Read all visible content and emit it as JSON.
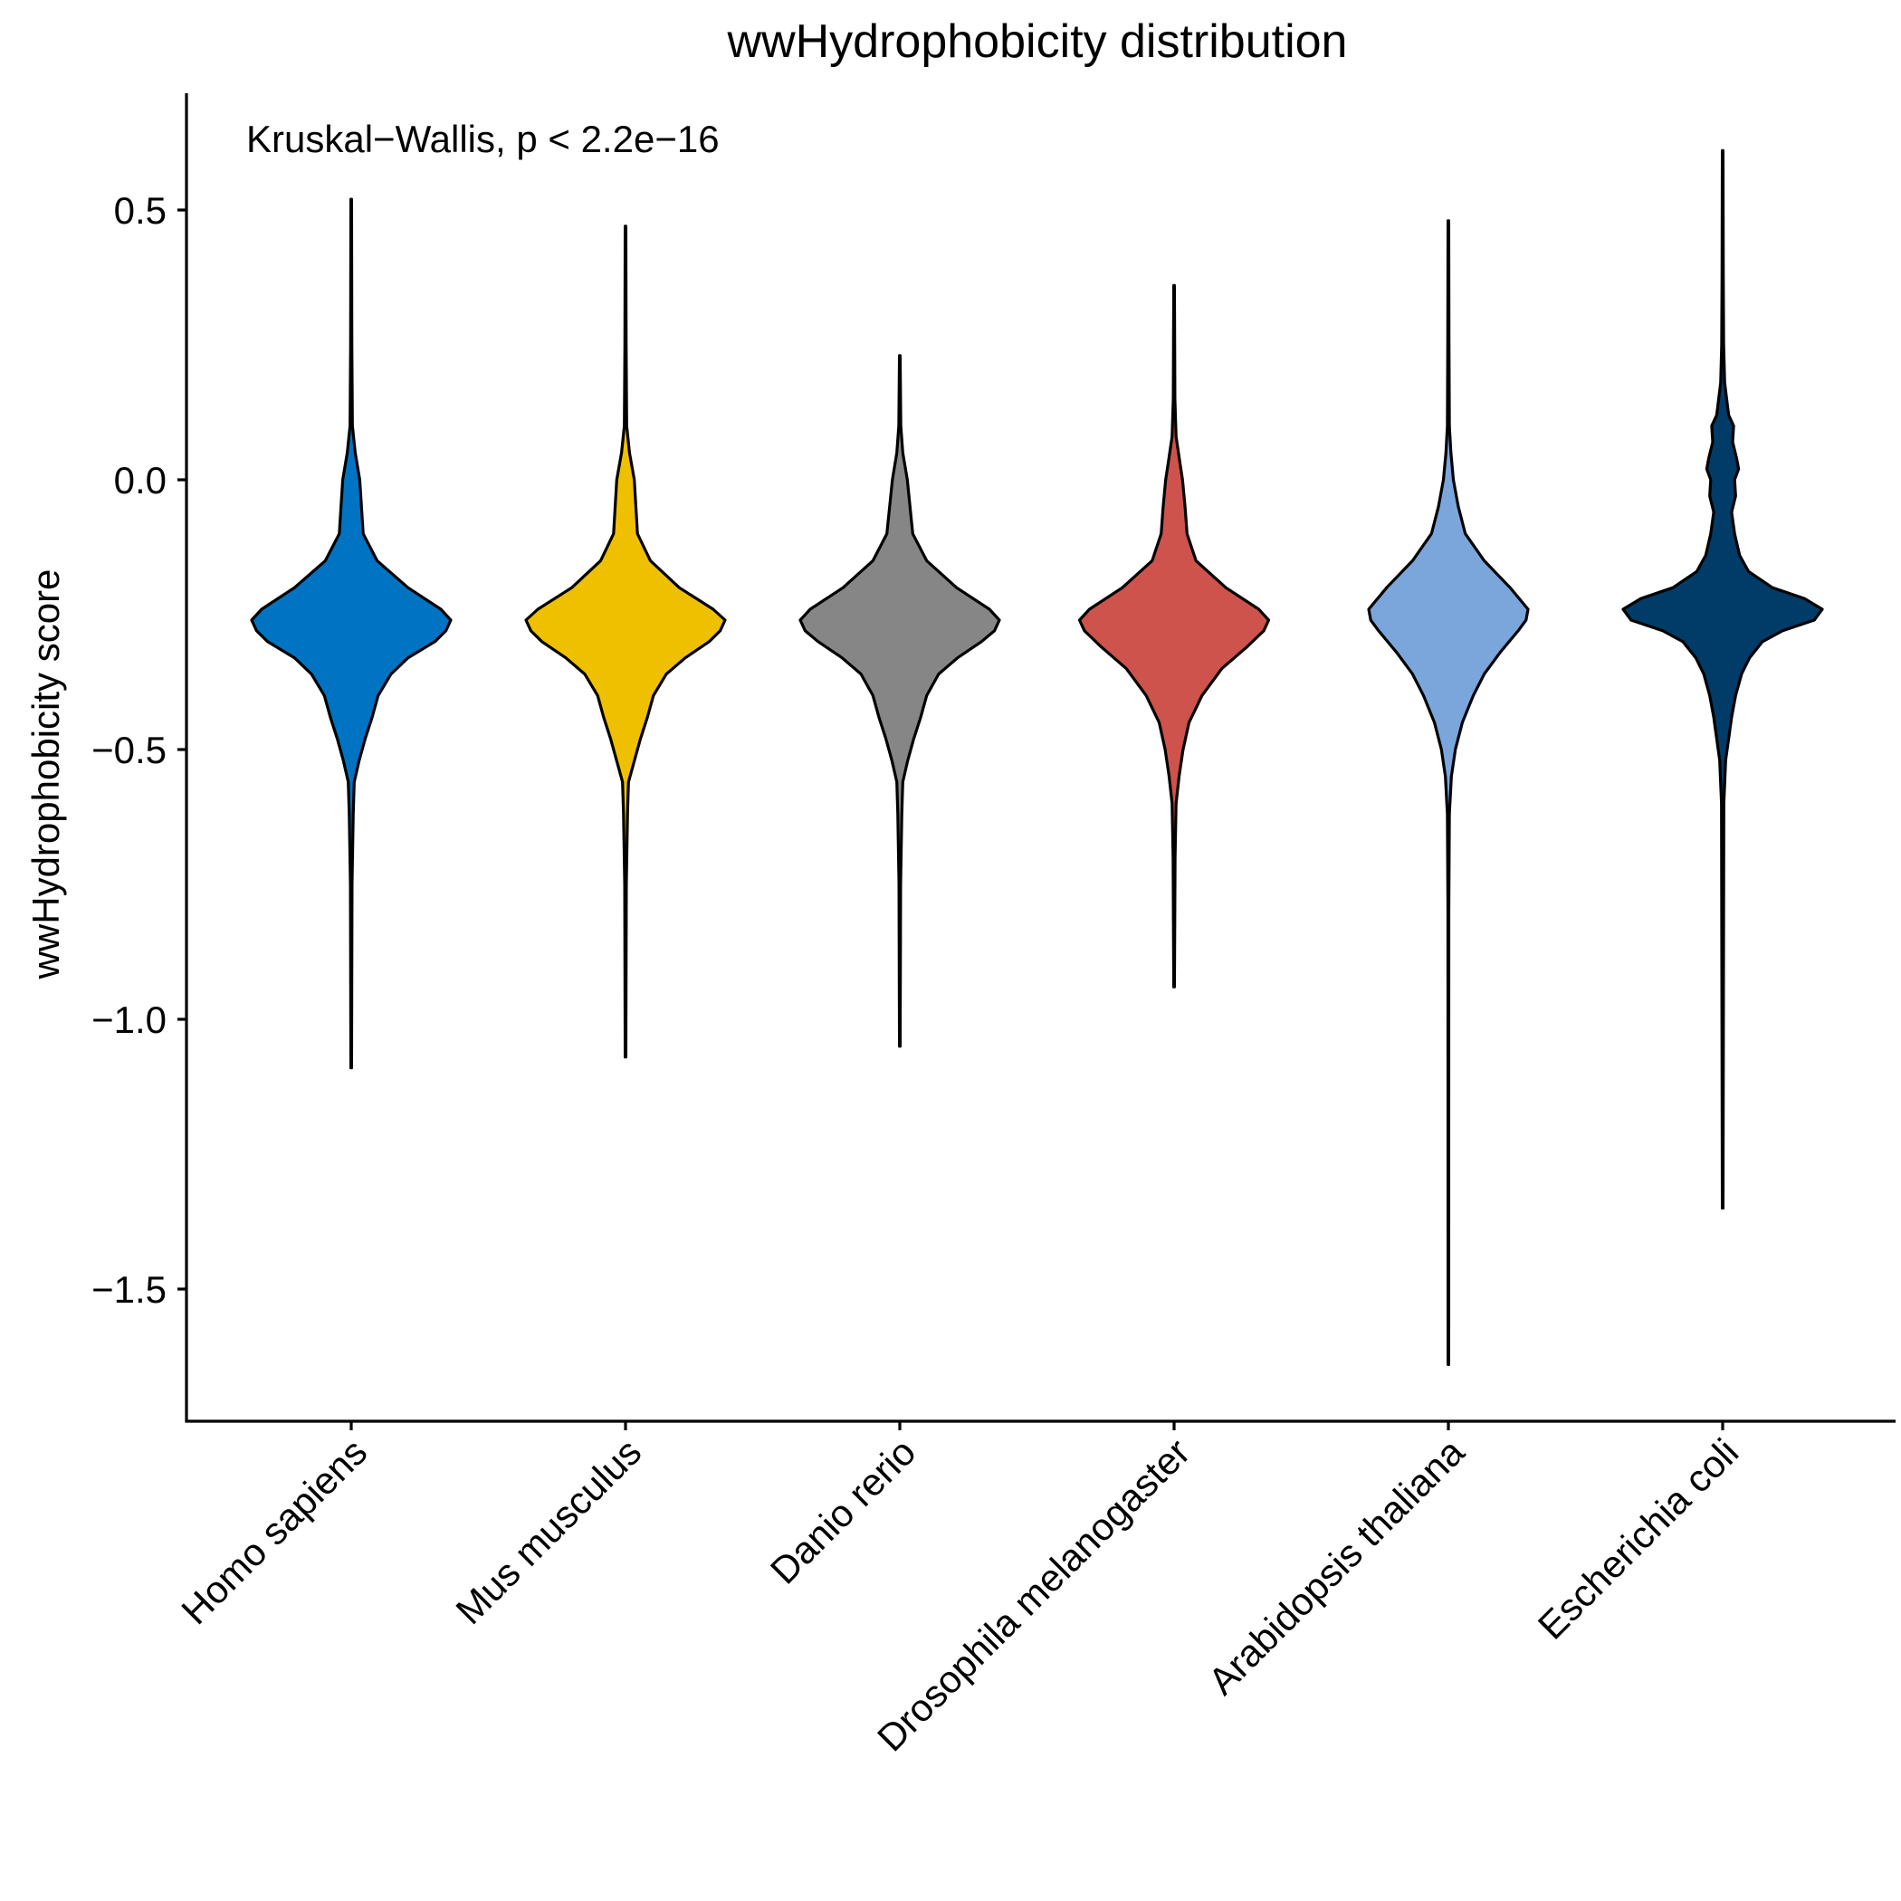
{
  "chart_data": {
    "type": "violin",
    "title": "wwHydrophobicity distribution",
    "xlabel": "",
    "ylabel": "wwHydrophobicity score",
    "annotation": "Kruskal−Wallis, p < 2.2e−16",
    "ylim": [
      -1.75,
      0.72
    ],
    "yticks": [
      0.5,
      0.0,
      -0.5,
      -1.0,
      -1.5
    ],
    "ytick_labels": [
      "0.5",
      "0.0",
      "−0.5",
      "−1.0",
      "−1.5"
    ],
    "grid": false,
    "legend": "none",
    "categories": [
      "Homo sapiens",
      "Mus musculus",
      "Danio rerio",
      "Drosophila melanogaster",
      "Arabidopsis thaliana",
      "Escherichia coli"
    ],
    "series": [
      {
        "category": "Homo sapiens",
        "color": "#0073C2",
        "min": -1.09,
        "max": 0.52,
        "profile": [
          [
            0.52,
            0.004
          ],
          [
            0.25,
            0.006
          ],
          [
            0.1,
            0.012
          ],
          [
            0.05,
            0.04
          ],
          [
            0.0,
            0.085
          ],
          [
            -0.1,
            0.12
          ],
          [
            -0.15,
            0.26
          ],
          [
            -0.2,
            0.57
          ],
          [
            -0.24,
            0.9
          ],
          [
            -0.26,
            1.0
          ],
          [
            -0.28,
            0.95
          ],
          [
            -0.3,
            0.84
          ],
          [
            -0.33,
            0.57
          ],
          [
            -0.36,
            0.4
          ],
          [
            -0.4,
            0.27
          ],
          [
            -0.44,
            0.21
          ],
          [
            -0.48,
            0.14
          ],
          [
            -0.52,
            0.08
          ],
          [
            -0.56,
            0.03
          ],
          [
            -0.62,
            0.02
          ],
          [
            -0.75,
            0.008
          ],
          [
            -1.09,
            0.004
          ]
        ]
      },
      {
        "category": "Mus musculus",
        "color": "#EFC000",
        "min": -1.07,
        "max": 0.47,
        "profile": [
          [
            0.47,
            0.004
          ],
          [
            0.25,
            0.006
          ],
          [
            0.1,
            0.012
          ],
          [
            0.05,
            0.04
          ],
          [
            0.0,
            0.088
          ],
          [
            -0.1,
            0.12
          ],
          [
            -0.15,
            0.25
          ],
          [
            -0.2,
            0.54
          ],
          [
            -0.24,
            0.88
          ],
          [
            -0.26,
            1.0
          ],
          [
            -0.28,
            0.95
          ],
          [
            -0.3,
            0.84
          ],
          [
            -0.33,
            0.6
          ],
          [
            -0.36,
            0.41
          ],
          [
            -0.4,
            0.28
          ],
          [
            -0.44,
            0.22
          ],
          [
            -0.48,
            0.15
          ],
          [
            -0.52,
            0.09
          ],
          [
            -0.56,
            0.03
          ],
          [
            -0.62,
            0.02
          ],
          [
            -0.75,
            0.008
          ],
          [
            -1.07,
            0.004
          ]
        ]
      },
      {
        "category": "Danio rerio",
        "color": "#868686",
        "min": -1.05,
        "max": 0.23,
        "profile": [
          [
            0.23,
            0.004
          ],
          [
            0.1,
            0.01
          ],
          [
            0.05,
            0.03
          ],
          [
            0.0,
            0.075
          ],
          [
            -0.1,
            0.13
          ],
          [
            -0.15,
            0.27
          ],
          [
            -0.2,
            0.57
          ],
          [
            -0.24,
            0.9
          ],
          [
            -0.26,
            1.0
          ],
          [
            -0.28,
            0.95
          ],
          [
            -0.3,
            0.82
          ],
          [
            -0.33,
            0.58
          ],
          [
            -0.36,
            0.39
          ],
          [
            -0.4,
            0.27
          ],
          [
            -0.44,
            0.21
          ],
          [
            -0.48,
            0.14
          ],
          [
            -0.52,
            0.08
          ],
          [
            -0.56,
            0.03
          ],
          [
            -0.62,
            0.02
          ],
          [
            -0.75,
            0.008
          ],
          [
            -1.05,
            0.004
          ]
        ]
      },
      {
        "category": "Drosophila melanogaster",
        "color": "#CD534C",
        "min": -0.94,
        "max": 0.36,
        "profile": [
          [
            0.36,
            0.004
          ],
          [
            0.15,
            0.008
          ],
          [
            0.08,
            0.02
          ],
          [
            0.03,
            0.06
          ],
          [
            0.0,
            0.085
          ],
          [
            -0.05,
            0.11
          ],
          [
            -0.1,
            0.13
          ],
          [
            -0.15,
            0.22
          ],
          [
            -0.2,
            0.52
          ],
          [
            -0.24,
            0.85
          ],
          [
            -0.26,
            0.95
          ],
          [
            -0.28,
            0.9
          ],
          [
            -0.31,
            0.73
          ],
          [
            -0.35,
            0.48
          ],
          [
            -0.4,
            0.28
          ],
          [
            -0.45,
            0.15
          ],
          [
            -0.5,
            0.09
          ],
          [
            -0.55,
            0.05
          ],
          [
            -0.6,
            0.02
          ],
          [
            -0.7,
            0.01
          ],
          [
            -0.94,
            0.004
          ]
        ]
      },
      {
        "category": "Arabidopsis thaliana",
        "color": "#7AA6DC",
        "min": -1.64,
        "max": 0.48,
        "profile": [
          [
            0.48,
            0.004
          ],
          [
            0.25,
            0.006
          ],
          [
            0.1,
            0.01
          ],
          [
            0.05,
            0.025
          ],
          [
            0.0,
            0.05
          ],
          [
            -0.05,
            0.1
          ],
          [
            -0.1,
            0.17
          ],
          [
            -0.15,
            0.36
          ],
          [
            -0.2,
            0.62
          ],
          [
            -0.24,
            0.8
          ],
          [
            -0.26,
            0.78
          ],
          [
            -0.28,
            0.7
          ],
          [
            -0.32,
            0.52
          ],
          [
            -0.36,
            0.36
          ],
          [
            -0.4,
            0.25
          ],
          [
            -0.45,
            0.14
          ],
          [
            -0.5,
            0.07
          ],
          [
            -0.55,
            0.03
          ],
          [
            -0.62,
            0.01
          ],
          [
            -0.8,
            0.005
          ],
          [
            -1.64,
            0.004
          ]
        ]
      },
      {
        "category": "Escherichia coli",
        "color": "#003C67",
        "min": -1.35,
        "max": 0.61,
        "profile": [
          [
            0.61,
            0.004
          ],
          [
            0.38,
            0.006
          ],
          [
            0.25,
            0.01
          ],
          [
            0.18,
            0.02
          ],
          [
            0.12,
            0.06
          ],
          [
            0.1,
            0.11
          ],
          [
            0.07,
            0.1
          ],
          [
            0.04,
            0.14
          ],
          [
            0.02,
            0.16
          ],
          [
            0.0,
            0.12
          ],
          [
            -0.03,
            0.13
          ],
          [
            -0.06,
            0.09
          ],
          [
            -0.1,
            0.12
          ],
          [
            -0.14,
            0.17
          ],
          [
            -0.17,
            0.26
          ],
          [
            -0.2,
            0.5
          ],
          [
            -0.22,
            0.82
          ],
          [
            -0.24,
            1.0
          ],
          [
            -0.26,
            0.92
          ],
          [
            -0.28,
            0.6
          ],
          [
            -0.3,
            0.4
          ],
          [
            -0.33,
            0.27
          ],
          [
            -0.36,
            0.19
          ],
          [
            -0.4,
            0.13
          ],
          [
            -0.44,
            0.09
          ],
          [
            -0.48,
            0.06
          ],
          [
            -0.52,
            0.03
          ],
          [
            -0.6,
            0.012
          ],
          [
            -1.35,
            0.004
          ]
        ]
      }
    ]
  }
}
